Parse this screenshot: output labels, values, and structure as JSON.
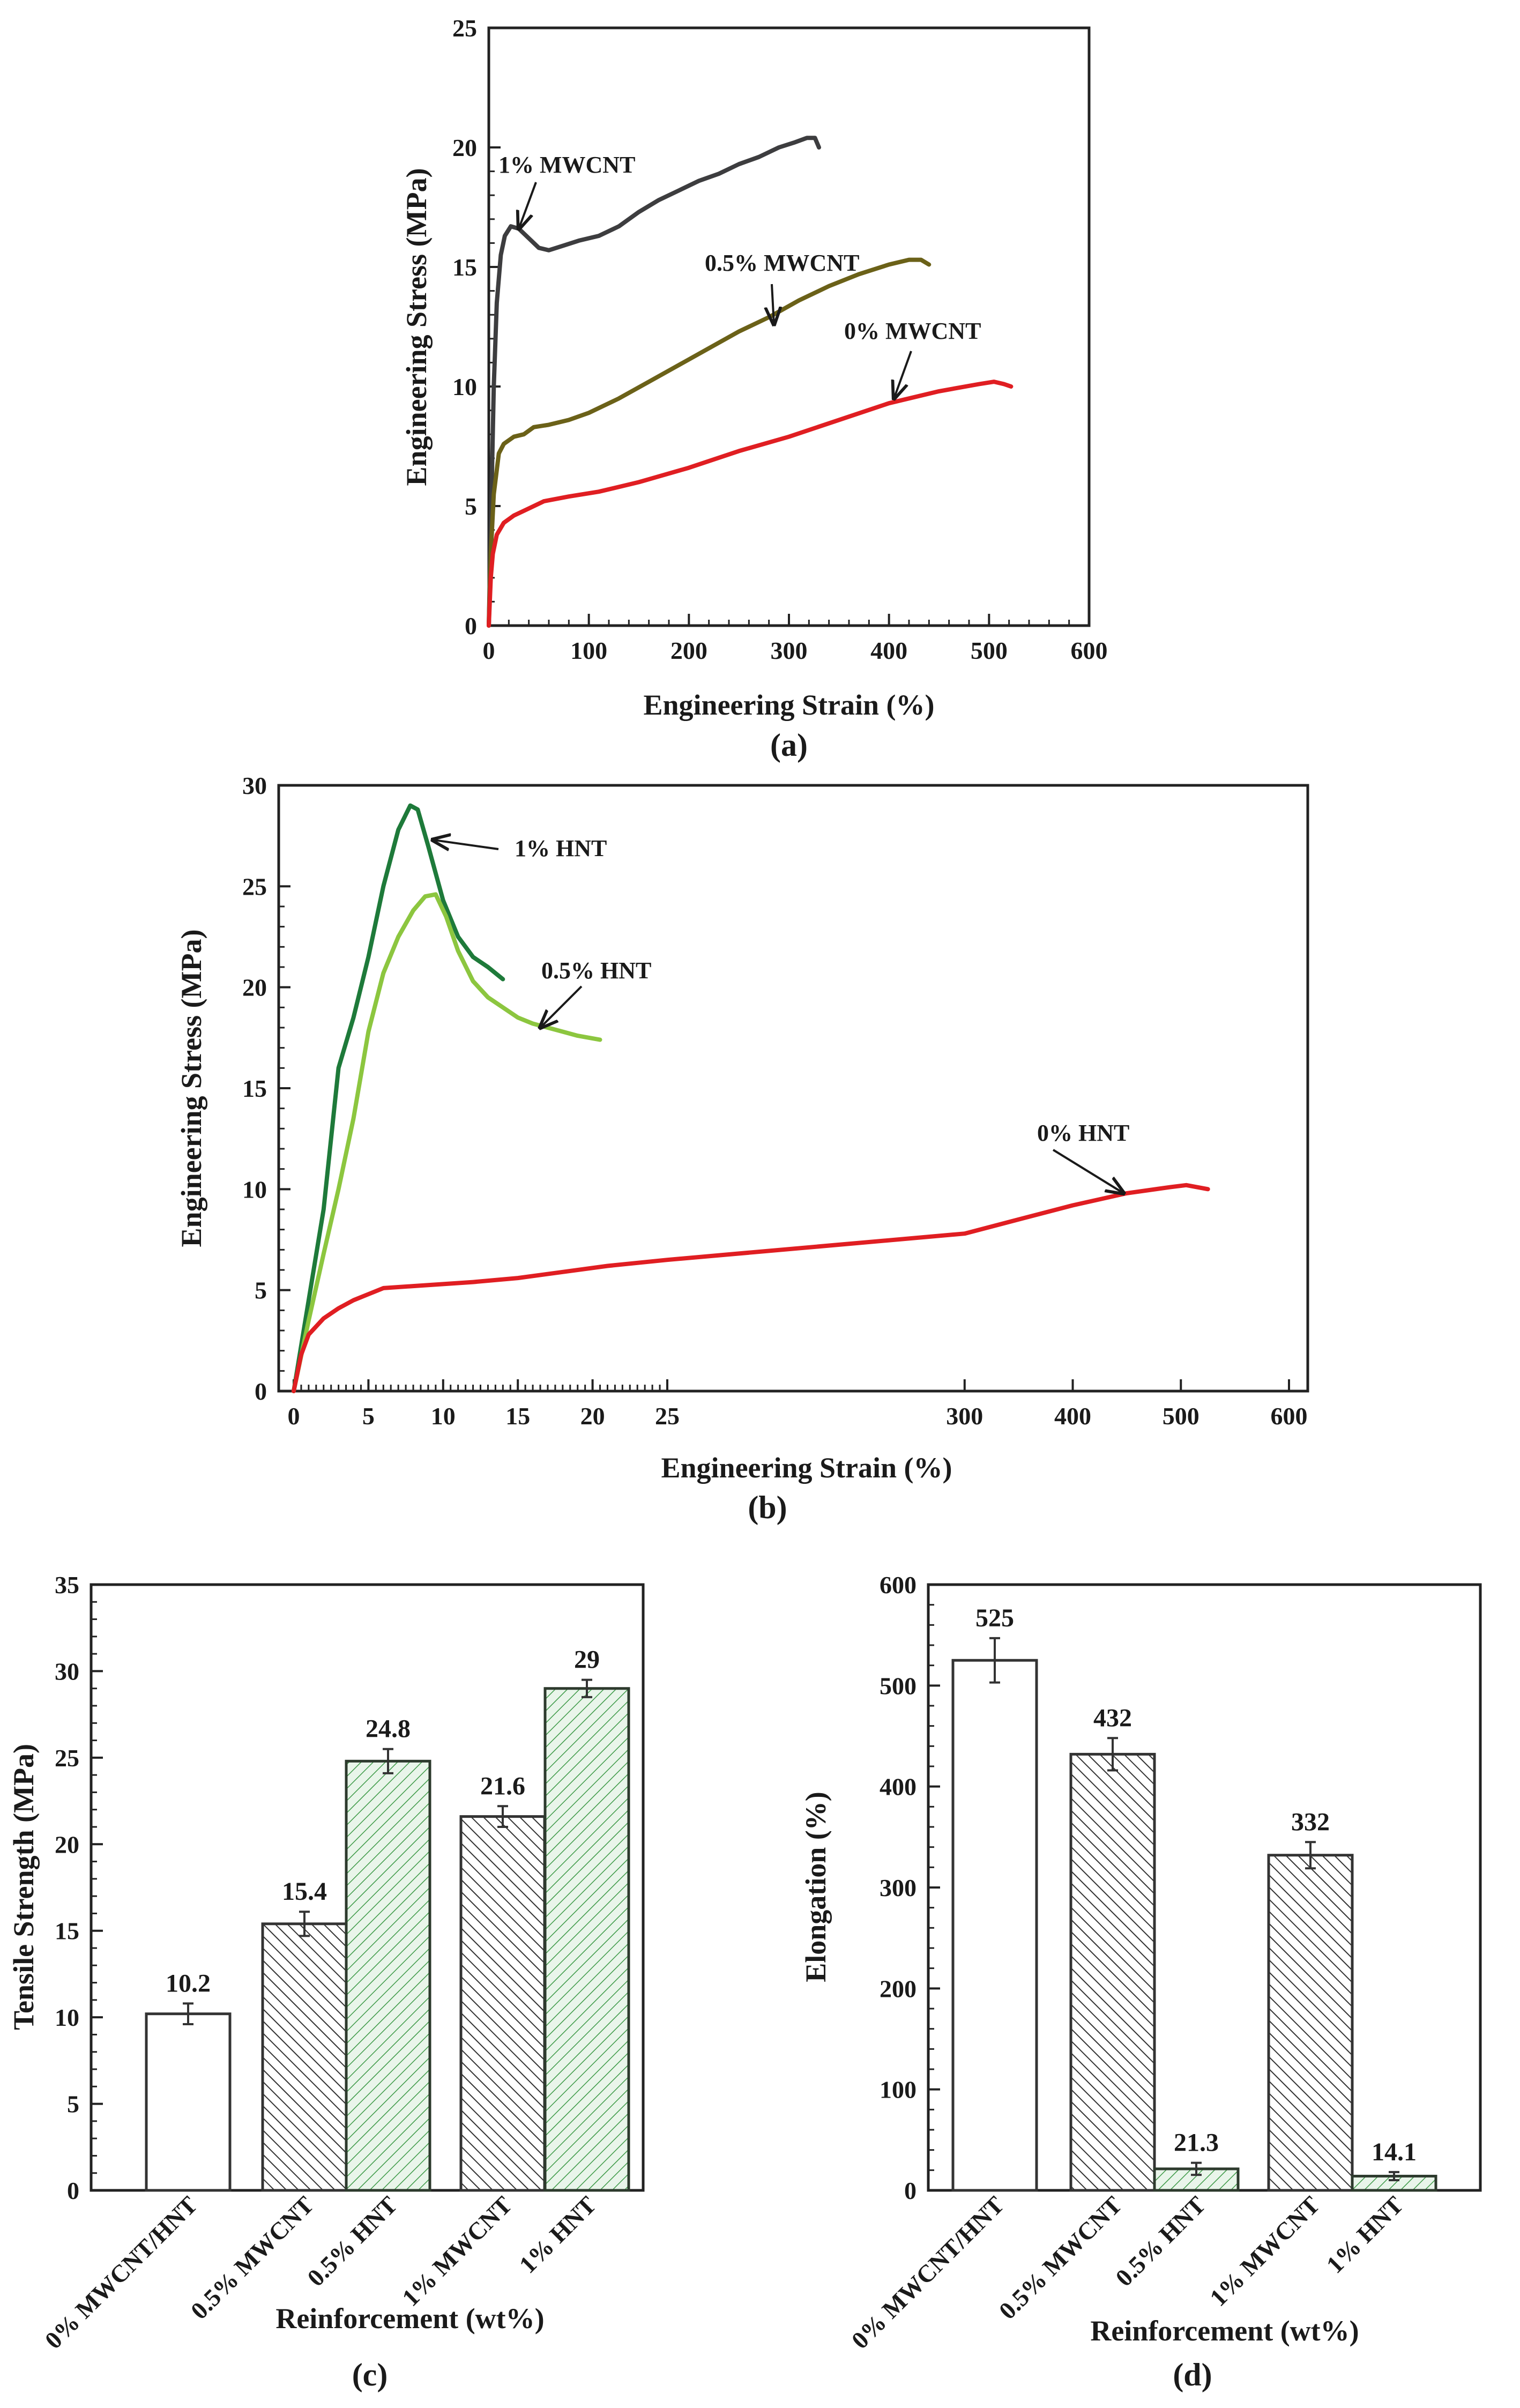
{
  "colors": {
    "mwcnt_1": "#3d3d3f",
    "mwcnt_05": "#6b6118",
    "control": "#e01e22",
    "hnt_1": "#1e7a3a",
    "hnt_05": "#8cc63f",
    "bar_outline": "#333333",
    "bar_hatch_green": "#3e9a48"
  },
  "chart_data": [
    {
      "id": "a",
      "type": "line",
      "panel_label": "(a)",
      "xlabel": "Engineering Strain (%)",
      "ylabel": "Engineering Stress (MPa)",
      "xlim": [
        0,
        600
      ],
      "ylim": [
        0,
        25
      ],
      "xticks": [
        0,
        100,
        200,
        300,
        400,
        500,
        600
      ],
      "yticks": [
        0,
        5,
        10,
        15,
        20,
        25
      ],
      "series": [
        {
          "name": "1% MWCNT",
          "color_key": "mwcnt_1",
          "points": [
            [
              0,
              0
            ],
            [
              2,
              4
            ],
            [
              5,
              10
            ],
            [
              8,
              13.5
            ],
            [
              12,
              15.5
            ],
            [
              16,
              16.3
            ],
            [
              22,
              16.7
            ],
            [
              30,
              16.6
            ],
            [
              40,
              16.2
            ],
            [
              50,
              15.8
            ],
            [
              60,
              15.7
            ],
            [
              75,
              15.9
            ],
            [
              90,
              16.1
            ],
            [
              110,
              16.3
            ],
            [
              130,
              16.7
            ],
            [
              150,
              17.3
            ],
            [
              170,
              17.8
            ],
            [
              190,
              18.2
            ],
            [
              210,
              18.6
            ],
            [
              230,
              18.9
            ],
            [
              250,
              19.3
            ],
            [
              270,
              19.6
            ],
            [
              290,
              20.0
            ],
            [
              305,
              20.2
            ],
            [
              318,
              20.4
            ],
            [
              326,
              20.4
            ],
            [
              330,
              20.0
            ]
          ]
        },
        {
          "name": "0.5% MWCNT",
          "color_key": "mwcnt_05",
          "points": [
            [
              0,
              0
            ],
            [
              2,
              3
            ],
            [
              5,
              5.5
            ],
            [
              10,
              7.2
            ],
            [
              15,
              7.6
            ],
            [
              25,
              7.9
            ],
            [
              35,
              8.0
            ],
            [
              45,
              8.3
            ],
            [
              60,
              8.4
            ],
            [
              80,
              8.6
            ],
            [
              100,
              8.9
            ],
            [
              130,
              9.5
            ],
            [
              160,
              10.2
            ],
            [
              190,
              10.9
            ],
            [
              220,
              11.6
            ],
            [
              250,
              12.3
            ],
            [
              280,
              12.9
            ],
            [
              310,
              13.6
            ],
            [
              340,
              14.2
            ],
            [
              370,
              14.7
            ],
            [
              400,
              15.1
            ],
            [
              420,
              15.3
            ],
            [
              432,
              15.3
            ],
            [
              440,
              15.1
            ]
          ]
        },
        {
          "name": "0% MWCNT",
          "color_key": "control",
          "points": [
            [
              0,
              0
            ],
            [
              2,
              2
            ],
            [
              4,
              3
            ],
            [
              8,
              3.8
            ],
            [
              15,
              4.3
            ],
            [
              25,
              4.6
            ],
            [
              40,
              4.9
            ],
            [
              55,
              5.2
            ],
            [
              80,
              5.4
            ],
            [
              110,
              5.6
            ],
            [
              150,
              6.0
            ],
            [
              200,
              6.6
            ],
            [
              250,
              7.3
            ],
            [
              300,
              7.9
            ],
            [
              350,
              8.6
            ],
            [
              400,
              9.3
            ],
            [
              450,
              9.8
            ],
            [
              490,
              10.1
            ],
            [
              505,
              10.2
            ],
            [
              515,
              10.1
            ],
            [
              522,
              10.0
            ]
          ]
        }
      ],
      "annotations": [
        {
          "text": "1% MWCNT",
          "points_to": [
            30,
            16.6
          ]
        },
        {
          "text": "0.5% MWCNT",
          "points_to": [
            285,
            12.6
          ]
        },
        {
          "text": "0% MWCNT",
          "points_to": [
            405,
            9.5
          ]
        }
      ]
    },
    {
      "id": "b",
      "type": "line",
      "panel_label": "(b)",
      "xlabel": "Engineering Strain (%)",
      "ylabel": "Engineering Stress (MPa)",
      "x_axis_note": "broken axis: 0-25 expanded, 25-600 compressed",
      "xticks": [
        0,
        5,
        10,
        15,
        20,
        25,
        300,
        400,
        500,
        600
      ],
      "ylim": [
        0,
        30
      ],
      "yticks": [
        0,
        5,
        10,
        15,
        20,
        25,
        30
      ],
      "series": [
        {
          "name": "1% HNT",
          "color_key": "hnt_1",
          "points": [
            [
              0,
              0
            ],
            [
              1,
              4.5
            ],
            [
              2,
              9
            ],
            [
              3,
              16
            ],
            [
              4,
              18.5
            ],
            [
              5,
              21.5
            ],
            [
              6,
              25
            ],
            [
              7,
              27.8
            ],
            [
              7.8,
              29
            ],
            [
              8.3,
              28.8
            ],
            [
              9,
              27
            ],
            [
              10,
              24.3
            ],
            [
              11,
              22.5
            ],
            [
              12,
              21.5
            ],
            [
              13,
              21
            ],
            [
              14,
              20.4
            ]
          ]
        },
        {
          "name": "0.5% HNT",
          "color_key": "hnt_05",
          "points": [
            [
              0,
              0
            ],
            [
              1,
              3.5
            ],
            [
              2,
              6.8
            ],
            [
              3,
              10
            ],
            [
              4,
              13.5
            ],
            [
              5,
              17.8
            ],
            [
              6,
              20.7
            ],
            [
              7,
              22.5
            ],
            [
              8,
              23.8
            ],
            [
              8.8,
              24.5
            ],
            [
              9.5,
              24.6
            ],
            [
              10.2,
              23.5
            ],
            [
              11,
              21.8
            ],
            [
              12,
              20.3
            ],
            [
              13,
              19.5
            ],
            [
              14,
              19
            ],
            [
              15,
              18.5
            ],
            [
              16,
              18.2
            ],
            [
              17,
              18
            ],
            [
              18,
              17.8
            ],
            [
              19,
              17.6
            ],
            [
              20.5,
              17.4
            ]
          ]
        },
        {
          "name": "0% HNT",
          "color_key": "control",
          "points": [
            [
              0,
              0
            ],
            [
              0.5,
              1.8
            ],
            [
              1,
              2.8
            ],
            [
              2,
              3.6
            ],
            [
              3,
              4.1
            ],
            [
              4,
              4.5
            ],
            [
              5,
              4.8
            ],
            [
              6,
              5.1
            ],
            [
              8,
              5.2
            ],
            [
              10,
              5.3
            ],
            [
              12,
              5.4
            ],
            [
              15,
              5.6
            ],
            [
              18,
              5.9
            ],
            [
              21,
              6.2
            ],
            [
              25,
              6.5
            ],
            [
              300,
              7.8
            ],
            [
              350,
              8.5
            ],
            [
              400,
              9.2
            ],
            [
              450,
              9.8
            ],
            [
              490,
              10.1
            ],
            [
              505,
              10.2
            ],
            [
              515,
              10.1
            ],
            [
              525,
              10.0
            ]
          ]
        }
      ],
      "annotations": [
        {
          "text": "1% HNT",
          "points_to": [
            9.3,
            27.3
          ]
        },
        {
          "text": "0.5% HNT",
          "points_to": [
            16.5,
            18.0
          ]
        },
        {
          "text": "0% HNT",
          "points_to": [
            447,
            9.8
          ]
        }
      ]
    },
    {
      "id": "c",
      "type": "bar",
      "panel_label": "(c)",
      "xlabel": "Reinforcement (wt%)",
      "ylabel": "Tensile Strength (MPa)",
      "ylim": [
        0,
        35
      ],
      "yticks": [
        0,
        5,
        10,
        15,
        20,
        25,
        30,
        35
      ],
      "categories": [
        "0% MWCNT/HNT",
        "0.5% MWCNT",
        "0.5% HNT",
        "1% MWCNT",
        "1% HNT"
      ],
      "values": [
        10.2,
        15.4,
        24.8,
        21.6,
        29
      ],
      "value_labels": [
        "10.2",
        "15.4",
        "24.8",
        "21.6",
        "29"
      ],
      "errors": [
        0.6,
        0.7,
        0.7,
        0.6,
        0.5
      ],
      "fills": [
        "white",
        "hatch",
        "green-hatch",
        "hatch",
        "green-hatch"
      ]
    },
    {
      "id": "d",
      "type": "bar",
      "panel_label": "(d)",
      "xlabel": "Reinforcement (wt%)",
      "ylabel": "Elongation (%)",
      "ylim": [
        0,
        600
      ],
      "yticks": [
        0,
        100,
        200,
        300,
        400,
        500,
        600
      ],
      "categories": [
        "0% MWCNT/HNT",
        "0.5% MWCNT",
        "0.5% HNT",
        "1% MWCNT",
        "1% HNT"
      ],
      "values": [
        525,
        432,
        21.3,
        332,
        14.1
      ],
      "value_labels": [
        "525",
        "432",
        "21.3",
        "332",
        "14.1"
      ],
      "errors": [
        22,
        16,
        6,
        13,
        4
      ],
      "fills": [
        "white",
        "hatch",
        "green-hatch",
        "hatch",
        "green-hatch"
      ]
    }
  ]
}
